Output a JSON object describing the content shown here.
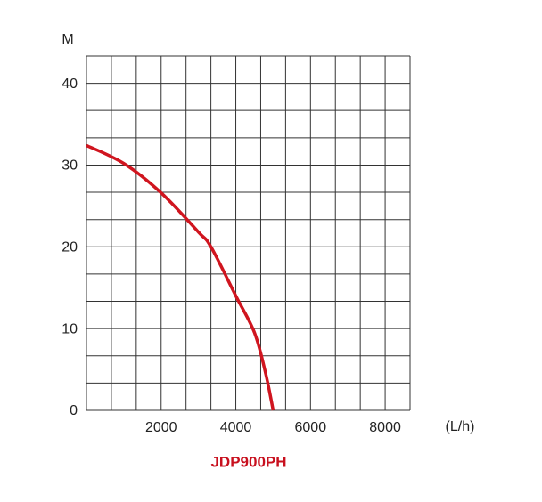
{
  "chart_data": {
    "type": "line",
    "title": "JDP900PH",
    "y_label": "M",
    "x_label": "(L/h)",
    "x": [
      0,
      1000,
      2000,
      3000,
      3333,
      4000,
      4500,
      4800,
      5000
    ],
    "series": [
      {
        "color": "#d0151f",
        "values": [
          32.4,
          30.2,
          26.6,
          21.8,
          20,
          14,
          9.5,
          4.5,
          0
        ]
      }
    ],
    "xlim": [
      0,
      8666.67
    ],
    "ylim": [
      0,
      43.33
    ],
    "xticks": [
      2000,
      4000,
      6000,
      8000
    ],
    "yticks": [
      0,
      10,
      20,
      30,
      40
    ],
    "xgrid": [
      0,
      666.67,
      1333.33,
      2000,
      2666.67,
      3333.33,
      4000,
      4666.67,
      5333.33,
      6000,
      6666.67,
      7333.33,
      8000,
      8666.67
    ],
    "ygrid": [
      0,
      3.33,
      6.67,
      10,
      13.33,
      16.67,
      20,
      23.33,
      26.67,
      30,
      33.33,
      36.67,
      40,
      43.33
    ],
    "grid": true
  }
}
